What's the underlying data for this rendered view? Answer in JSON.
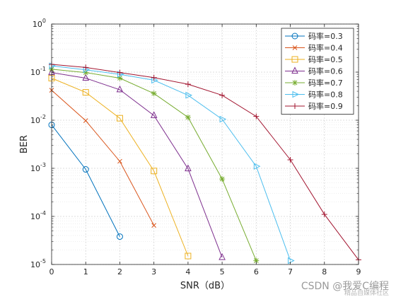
{
  "chart_data": {
    "type": "line",
    "xlabel": "SNR（dB）",
    "ylabel": "BER",
    "xlim": [
      0,
      9
    ],
    "ylim": [
      1e-05,
      1
    ],
    "yscale": "log",
    "x_ticks": [
      "0",
      "1",
      "2",
      "3",
      "4",
      "5",
      "6",
      "7",
      "8",
      "9"
    ],
    "y_ticks": [
      {
        "base": "10",
        "exp": "0"
      },
      {
        "base": "10",
        "exp": "-1"
      },
      {
        "base": "10",
        "exp": "-2"
      },
      {
        "base": "10",
        "exp": "-3"
      },
      {
        "base": "10",
        "exp": "-4"
      },
      {
        "base": "10",
        "exp": "-5"
      }
    ],
    "grid": true,
    "legend_position": "top-right",
    "series": [
      {
        "name": "码率=0.3",
        "color": "#0072BD",
        "marker": "circle",
        "x": [
          0,
          1,
          2
        ],
        "values": [
          0.008,
          0.00095,
          3.8e-05
        ]
      },
      {
        "name": "码率=0.4",
        "color": "#D95319",
        "marker": "x",
        "x": [
          0,
          1,
          2,
          3
        ],
        "values": [
          0.042,
          0.0098,
          0.0014,
          6.5e-05
        ]
      },
      {
        "name": "码率=0.5",
        "color": "#EDB120",
        "marker": "square",
        "x": [
          0,
          1,
          2,
          3,
          4
        ],
        "values": [
          0.075,
          0.038,
          0.011,
          0.00088,
          1.5e-05
        ]
      },
      {
        "name": "码率=0.6",
        "color": "#7E2F8E",
        "marker": "triangle-up",
        "x": [
          0,
          1,
          2,
          3,
          4,
          5
        ],
        "values": [
          0.098,
          0.075,
          0.043,
          0.0125,
          0.00098,
          1.4e-05
        ]
      },
      {
        "name": "码率=0.7",
        "color": "#77AC30",
        "marker": "star",
        "x": [
          0,
          1,
          2,
          3,
          4,
          5,
          6
        ],
        "values": [
          0.115,
          0.098,
          0.075,
          0.036,
          0.0115,
          0.0006,
          1.2e-05
        ]
      },
      {
        "name": "码率=0.8",
        "color": "#4DBEEE",
        "marker": "triangle-right",
        "x": [
          0,
          1,
          2,
          3,
          4,
          5,
          6,
          7
        ],
        "values": [
          0.135,
          0.112,
          0.09,
          0.068,
          0.033,
          0.0105,
          0.0011,
          1.2e-05
        ]
      },
      {
        "name": "码率=0.9",
        "color": "#A2142F",
        "marker": "plus",
        "x": [
          0,
          1,
          2,
          3,
          4,
          5,
          6,
          7,
          8,
          9
        ],
        "values": [
          0.145,
          0.125,
          0.098,
          0.077,
          0.056,
          0.033,
          0.012,
          0.0015,
          0.00011,
          1.25e-05
        ]
      }
    ]
  },
  "watermark": {
    "text": "CSDN @我爱C编程",
    "subtext": "精品自媒体社区"
  }
}
